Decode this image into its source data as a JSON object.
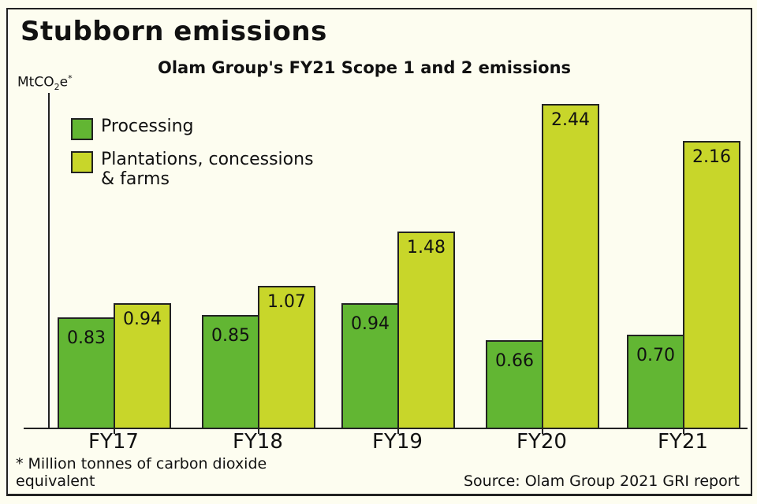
{
  "title": "Stubborn emissions",
  "subtitle": "Olam Group's FY21 Scope 1 and 2 emissions",
  "unit": {
    "base": "MtCO",
    "sub": "2",
    "tail": "e",
    "sup": "*"
  },
  "legend": [
    {
      "label": "Processing",
      "color": "#62b633"
    },
    {
      "label": "Plantations, concessions & farms",
      "line1": "Plantations, concessions",
      "line2": "& farms",
      "color": "#c8d62a"
    }
  ],
  "footnote": {
    "line1": "* Million tonnes of carbon dioxide",
    "line2": "equivalent"
  },
  "source": "Source: Olam Group 2021 GRI report",
  "colors": {
    "processing": "#62b633",
    "plantations": "#c8d62a",
    "background": "#fdfdf0",
    "ink": "#222222"
  },
  "chart_data": {
    "type": "bar",
    "title": "Stubborn emissions",
    "subtitle": "Olam Group's FY21 Scope 1 and 2 emissions",
    "xlabel": "",
    "ylabel": "MtCO2e*",
    "categories": [
      "FY17",
      "FY18",
      "FY19",
      "FY20",
      "FY21"
    ],
    "series": [
      {
        "name": "Processing",
        "values": [
          0.83,
          0.85,
          0.94,
          0.66,
          0.7
        ],
        "labels": [
          "0.83",
          "0.85",
          "0.94",
          "0.66",
          "0.70"
        ]
      },
      {
        "name": "Plantations, concessions & farms",
        "values": [
          0.94,
          1.07,
          1.48,
          2.44,
          2.16
        ],
        "labels": [
          "0.94",
          "1.07",
          "1.48",
          "2.44",
          "2.16"
        ]
      }
    ],
    "ylim": [
      0,
      2.5
    ],
    "grid": false,
    "legend_position": "upper left",
    "annotations": [
      "* Million tonnes of carbon dioxide equivalent",
      "Source: Olam Group 2021 GRI report"
    ]
  }
}
